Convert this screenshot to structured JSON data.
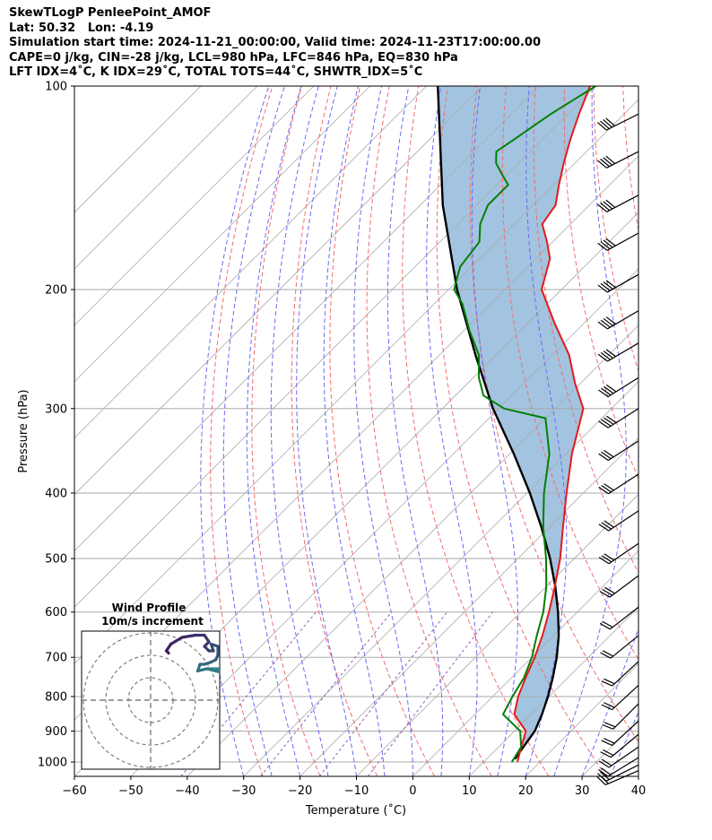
{
  "header": {
    "line1": "SkewTLogP PenleePoint_AMOF",
    "line2": "Lat: 50.32   Lon: -4.19",
    "line3": "Simulation start time: 2024-11-21_00:00:00, Valid time: 2024-11-23T17:00:00.00",
    "line4": "CAPE=0 j/kg, CIN=-28 j/kg, LCL=980 hPa, LFC=846 hPa, EQ=830 hPa",
    "line5": "LFT IDX=4˚C, K IDX=29˚C, TOTAL TOTS=44˚C, SHWTR_IDX=5˚C"
  },
  "colors": {
    "temperature": "#e31a1c",
    "dewpoint": "#008000",
    "parcel": "#000000",
    "shade": "#a3c4e0",
    "dry_adiabat": "#f26d6d",
    "moist_adiabat": "#6a6af5",
    "isotherm": "#aaaaaa",
    "mixing_ratio": "#9b59b6",
    "hodo_low": "#2e8b8b",
    "hodo_high": "#3f1a5e"
  },
  "chart_data": [
    {
      "type": "line",
      "subtype": "skew-t log-p",
      "xlabel": "Temperature (˚C)",
      "ylabel": "Pressure (hPa)",
      "xlim": [
        -60,
        40
      ],
      "ylim": [
        1050,
        100
      ],
      "xticks": [
        "−60",
        "−50",
        "−40",
        "−30",
        "−20",
        "−10",
        "0",
        "10",
        "20",
        "30",
        "40"
      ],
      "yticks": [
        "100",
        "200",
        "300",
        "400",
        "500",
        "600",
        "700",
        "800",
        "900",
        "1000"
      ],
      "series": [
        {
          "name": "Temperature",
          "points": [
            [
              16,
              1000
            ],
            [
              14,
              950
            ],
            [
              12,
              900
            ],
            [
              7,
              850
            ],
            [
              4.5,
              800
            ],
            [
              2.5,
              750
            ],
            [
              0.5,
              700
            ],
            [
              -2,
              650
            ],
            [
              -5,
              600
            ],
            [
              -8.5,
              550
            ],
            [
              -12.5,
              500
            ],
            [
              -17.5,
              450
            ],
            [
              -23,
              400
            ],
            [
              -29,
              350
            ],
            [
              -35,
              300
            ],
            [
              -41,
              275
            ],
            [
              -47,
              250
            ],
            [
              -55,
              225
            ],
            [
              -63.5,
              200
            ],
            [
              -67.5,
              180
            ],
            [
              -71,
              170
            ],
            [
              -75,
              160
            ],
            [
              -76,
              150
            ],
            [
              -79,
              140
            ],
            [
              -82,
              130
            ],
            [
              -85,
              120
            ],
            [
              -88,
              110
            ],
            [
              -91,
              100
            ]
          ]
        },
        {
          "name": "Dewpoint",
          "points": [
            [
              15,
              1000
            ],
            [
              14,
              950
            ],
            [
              11,
              900
            ],
            [
              5,
              850
            ],
            [
              3.5,
              800
            ],
            [
              2.2,
              750
            ],
            [
              0,
              700
            ],
            [
              -3,
              650
            ],
            [
              -6,
              600
            ],
            [
              -10,
              550
            ],
            [
              -15,
              500
            ],
            [
              -21,
              450
            ],
            [
              -27,
              400
            ],
            [
              -33,
              350
            ],
            [
              -40,
              310
            ],
            [
              -49,
              300
            ],
            [
              -55,
              287
            ],
            [
              -59,
              270
            ],
            [
              -63,
              250
            ],
            [
              -69,
              230
            ],
            [
              -75,
              210
            ],
            [
              -79,
              200
            ],
            [
              -81,
              190
            ],
            [
              -82,
              185
            ],
            [
              -83,
              170
            ],
            [
              -86,
              160
            ],
            [
              -88,
              150
            ],
            [
              -88,
              140
            ],
            [
              -91,
              135
            ],
            [
              -94,
              130
            ],
            [
              -96,
              125
            ],
            [
              -95,
              120
            ],
            [
              -93,
              110
            ],
            [
              -90,
              100
            ]
          ]
        },
        {
          "name": "Parcel",
          "points": [
            [
              15,
              990
            ],
            [
              13.6,
              900
            ],
            [
              11.9,
              850
            ],
            [
              9.8,
              800
            ],
            [
              7.3,
              750
            ],
            [
              4.4,
              700
            ],
            [
              0.9,
              650
            ],
            [
              -3.4,
              600
            ],
            [
              -8.4,
              550
            ],
            [
              -14.3,
              500
            ],
            [
              -21.3,
              450
            ],
            [
              -29.5,
              400
            ],
            [
              -39.3,
              350
            ],
            [
              -51.0,
              300
            ],
            [
              -63.6,
              250
            ],
            [
              -78.5,
              200
            ],
            [
              -96,
              150
            ],
            [
              -118,
              100
            ]
          ]
        }
      ],
      "wind_barbs": [
        {
          "p": 1030,
          "u": 14,
          "v": 6
        },
        {
          "p": 1010,
          "u": 14,
          "v": 7
        },
        {
          "p": 985,
          "u": 13,
          "v": 8
        },
        {
          "p": 950,
          "u": 13,
          "v": 9
        },
        {
          "p": 910,
          "u": 12,
          "v": 10
        },
        {
          "p": 870,
          "u": 12,
          "v": 11
        },
        {
          "p": 820,
          "u": 12,
          "v": 12
        },
        {
          "p": 770,
          "u": 13,
          "v": 12
        },
        {
          "p": 710,
          "u": 14,
          "v": 13
        },
        {
          "p": 650,
          "u": 16,
          "v": 13
        },
        {
          "p": 590,
          "u": 18,
          "v": 14
        },
        {
          "p": 530,
          "u": 20,
          "v": 15
        },
        {
          "p": 475,
          "u": 22,
          "v": 15
        },
        {
          "p": 425,
          "u": 24,
          "v": 16
        },
        {
          "p": 375,
          "u": 26,
          "v": 17
        },
        {
          "p": 335,
          "u": 28,
          "v": 18
        },
        {
          "p": 300,
          "u": 30,
          "v": 19
        },
        {
          "p": 270,
          "u": 32,
          "v": 20
        },
        {
          "p": 240,
          "u": 34,
          "v": 20
        },
        {
          "p": 215,
          "u": 36,
          "v": 21
        },
        {
          "p": 190,
          "u": 37,
          "v": 21
        },
        {
          "p": 165,
          "u": 38,
          "v": 21
        },
        {
          "p": 145,
          "u": 38,
          "v": 20
        },
        {
          "p": 125,
          "u": 37,
          "v": 19
        },
        {
          "p": 110,
          "u": 36,
          "v": 18
        }
      ]
    },
    {
      "type": "line",
      "subtype": "hodograph",
      "title": "Wind Profile",
      "subtitle": "10m/s increment",
      "rings": [
        10,
        20,
        30
      ],
      "points": [
        [
          25,
          14
        ],
        [
          30,
          14
        ],
        [
          33,
          12
        ],
        [
          29,
          13
        ],
        [
          25,
          14
        ],
        [
          21,
          13
        ],
        [
          22,
          16
        ],
        [
          24,
          16
        ],
        [
          27,
          17
        ],
        [
          29,
          18
        ],
        [
          30,
          20
        ],
        [
          30,
          24
        ],
        [
          27,
          25
        ],
        [
          28,
          22
        ],
        [
          26,
          22
        ],
        [
          24,
          24
        ],
        [
          26,
          26
        ],
        [
          24,
          29
        ],
        [
          20,
          29
        ],
        [
          14,
          28
        ],
        [
          9,
          25
        ],
        [
          7,
          22
        ],
        [
          8,
          21
        ]
      ]
    }
  ]
}
